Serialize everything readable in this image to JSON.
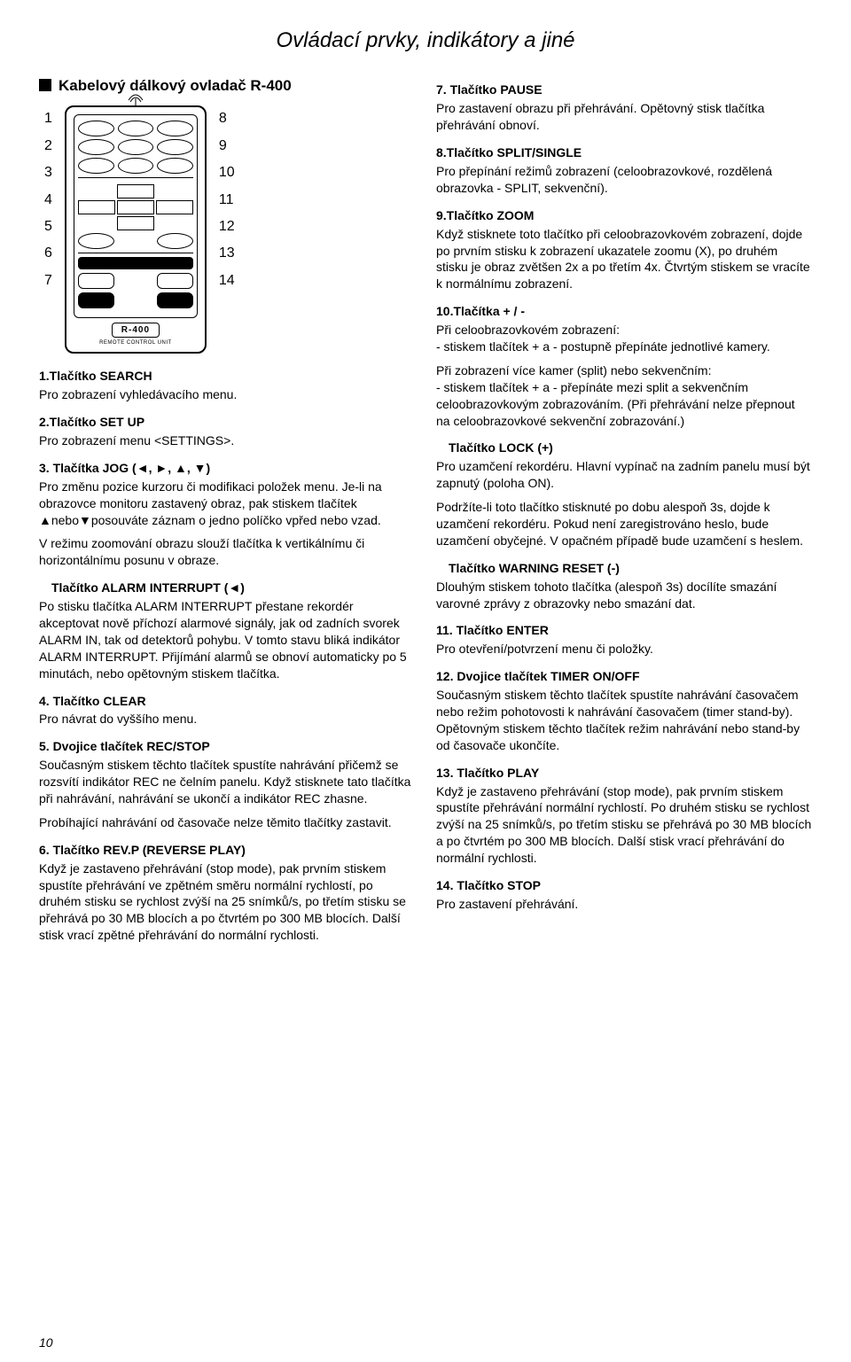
{
  "doc": {
    "title": "Ovládací prvky, indikátory a jiné",
    "pageNumber": "10"
  },
  "left": {
    "heading": "Kabelový dálkový ovladač R-400",
    "numsLeft": [
      "1",
      "2",
      "3",
      "4",
      "5",
      "6",
      "7"
    ],
    "numsRight": [
      "8",
      "9",
      "10",
      "11",
      "12",
      "13",
      "14"
    ],
    "remote": {
      "model": "R-400",
      "rcu": "REMOTE CONTROL UNIT"
    },
    "items": [
      {
        "h": "1.Tlačítko SEARCH",
        "p": [
          "Pro zobrazení vyhledávacího menu."
        ]
      },
      {
        "h": "2.Tlačítko SET UP",
        "p": [
          "Pro zobrazení menu <SETTINGS>."
        ]
      },
      {
        "h": "3. Tlačítka JOG (◄, ►, ▲, ▼)",
        "p": [
          "Pro změnu pozice kurzoru či modifikaci položek menu. Je-li na obrazovce monitoru zastavený obraz, pak stiskem tlačítek ▲nebo▼posouváte záznam o jedno políčko vpřed nebo vzad.",
          "V režimu zoomování obrazu slouží tlačítka k vertikálnímu či horizontálnímu posunu v obraze."
        ]
      },
      {
        "h": "Tlačítko ALARM INTERRUPT (◄)",
        "ind": true,
        "p": [
          "Po stisku tlačítka ALARM INTERRUPT přestane rekordér akceptovat nově příchozí alarmové signály, jak od zadních svorek ALARM IN, tak od detektorů pohybu. V tomto stavu bliká indikátor ALARM INTERRUPT. Přijímání alarmů se obnoví automaticky po 5 minutách, nebo opětovným stiskem tlačítka."
        ]
      },
      {
        "h": "4. Tlačítko CLEAR",
        "p": [
          "Pro návrat do vyššího menu."
        ]
      },
      {
        "h": "5. Dvojice tlačítek REC/STOP",
        "p": [
          "Současným stiskem těchto tlačítek spustíte nahrávání přičemž se rozsvítí indikátor REC ne čelním panelu. Když stisknete tato tlačítka při nahrávání, nahrávání se ukončí a indikátor REC zhasne.",
          "Probíhající nahrávání od časovače nelze těmito tlačítky zastavit."
        ]
      },
      {
        "h": "6. Tlačítko REV.P (REVERSE PLAY)",
        "p": [
          "Když je zastaveno přehrávání (stop mode), pak prvním stiskem spustíte přehrávání ve zpětném směru normální rychlostí, po druhém stisku se rychlost zvýší na 25 snímků/s, po třetím stisku se přehrává po 30 MB blocích a po čtvrtém po 300 MB blocích. Další stisk vrací zpětné přehrávání do normální rychlosti."
        ]
      }
    ]
  },
  "right": {
    "items": [
      {
        "h": "7. Tlačítko PAUSE",
        "p": [
          "Pro zastavení obrazu při přehrávání. Opětovný stisk tlačítka přehrávání obnoví."
        ]
      },
      {
        "h": "8.Tlačítko SPLIT/SINGLE",
        "p": [
          "Pro přepínání režimů zobrazení (celoobrazovkové, rozdělená obrazovka - SPLIT, sekvenční)."
        ]
      },
      {
        "h": "9.Tlačítko ZOOM",
        "p": [
          "Když stisknete toto tlačítko při celoobrazovkovém zobrazení, dojde po prvním stisku k zobrazení ukazatele zoomu (X), po druhém stisku je obraz zvětšen 2x a po třetím 4x. Čtvrtým stiskem se vracíte k normálnímu zobrazení."
        ]
      },
      {
        "h": "10.Tlačítka + / -",
        "p": [
          "Při celoobrazovkovém zobrazení:\n- stiskem tlačítek + a - postupně přepínáte jednotlivé kamery.",
          "Při zobrazení více kamer (split) nebo sekvenčním:\n- stiskem tlačítek + a - přepínáte mezi split a sekvenčním celoobrazovkovým zobrazováním. (Při přehrávání nelze přepnout na celoobrazovkové sekvenční zobrazování.)"
        ]
      },
      {
        "h": "Tlačítko LOCK (+)",
        "ind": true,
        "p": [
          "Pro uzamčení rekordéru. Hlavní vypínač na zadním panelu musí být zapnutý (poloha ON).",
          "Podržíte-li toto tlačítko stisknuté po dobu alespoň 3s, dojde k uzamčení rekordéru. Pokud není zaregistrováno heslo, bude uzamčení obyčejné. V opačném případě bude uzamčení s heslem."
        ]
      },
      {
        "h": "Tlačítko WARNING RESET (-)",
        "ind": true,
        "p": [
          "Dlouhým stiskem tohoto tlačítka (alespoň 3s) docílíte smazání varovné zprávy z obrazovky nebo smazání dat."
        ]
      },
      {
        "h": "11. Tlačítko ENTER",
        "p": [
          "Pro otevření/potvrzení menu či položky."
        ]
      },
      {
        "h": "12. Dvojice tlačítek TIMER ON/OFF",
        "p": [
          "Současným stiskem těchto tlačítek spustíte nahrávání časovačem nebo režim pohotovosti k nahrávání časovačem (timer stand-by). Opětovným stiskem těchto tlačítek režim nahrávání nebo stand-by od časovače ukončíte."
        ]
      },
      {
        "h": "13. Tlačítko PLAY",
        "p": [
          "Když je zastaveno přehrávání (stop mode), pak prvním stiskem spustíte přehrávání normální rychlostí. Po druhém stisku se rychlost zvýší na 25 snímků/s, po třetím stisku se přehrává po 30 MB blocích a po čtvrtém po 300 MB blocích. Další stisk vrací přehrávání do normální rychlosti."
        ]
      },
      {
        "h": "14. Tlačítko STOP",
        "p": [
          "Pro zastavení přehrávání."
        ]
      }
    ]
  }
}
